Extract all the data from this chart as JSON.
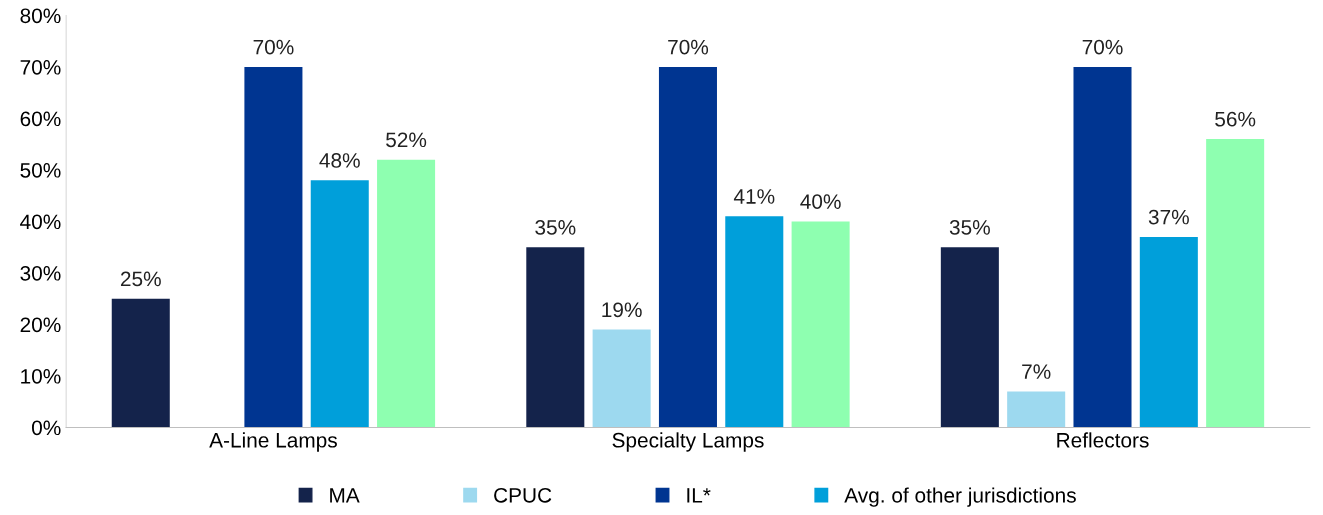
{
  "chart_data": {
    "type": "bar",
    "categories": [
      "A-Line Lamps",
      "Specialty Lamps",
      "Reflectors"
    ],
    "series": [
      {
        "name": "MA",
        "color": "#14234b",
        "values": [
          25,
          35,
          35
        ],
        "value_labels": [
          "25%",
          "35%",
          "35%"
        ]
      },
      {
        "name": "CPUC",
        "color": "#9dd9ef",
        "values": [
          null,
          19,
          7
        ],
        "value_labels": [
          null,
          "19%",
          "7%"
        ]
      },
      {
        "name": "IL*",
        "color": "#003591",
        "values": [
          70,
          70,
          70
        ],
        "value_labels": [
          "70%",
          "70%",
          "70%"
        ]
      },
      {
        "name": "Avg. of other jurisdictions",
        "color": "#009fda",
        "values": [
          48,
          41,
          37
        ],
        "value_labels": [
          "48%",
          "41%",
          "37%"
        ]
      },
      {
        "color": "#8effb0",
        "values": [
          52,
          40,
          56
        ],
        "value_labels": [
          "52%",
          "40%",
          "56%"
        ]
      }
    ],
    "ylim": [
      0,
      80
    ],
    "yticks": [
      {
        "value": 0,
        "label": "0%"
      },
      {
        "value": 10,
        "label": "10%"
      },
      {
        "value": 20,
        "label": "20%"
      },
      {
        "value": 30,
        "label": "30%"
      },
      {
        "value": 40,
        "label": "40%"
      },
      {
        "value": 50,
        "label": "50%"
      },
      {
        "value": 60,
        "label": "60%"
      },
      {
        "value": 70,
        "label": "70%"
      },
      {
        "value": 80,
        "label": "80%"
      }
    ],
    "grid": false,
    "legend": "bottom"
  }
}
